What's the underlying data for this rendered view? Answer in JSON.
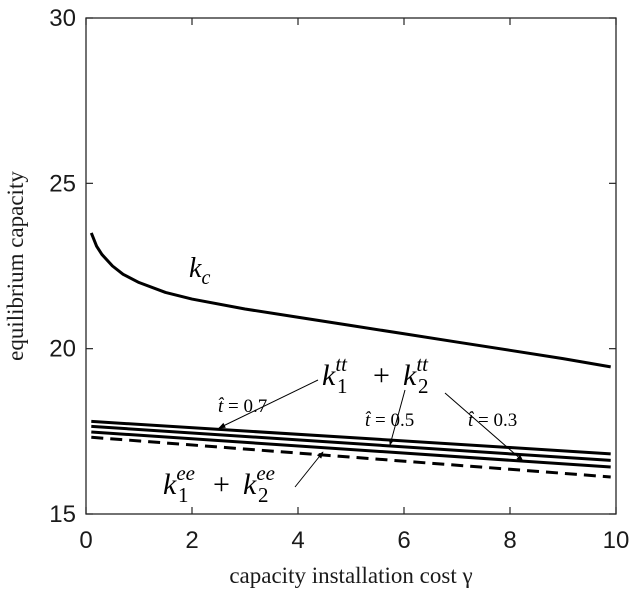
{
  "chart_data": {
    "type": "line",
    "xlabel": "capacity installation cost γ",
    "ylabel": "equilibrium capacity",
    "xlim": [
      0,
      10
    ],
    "ylim": [
      15,
      30
    ],
    "xticks": [
      0,
      2,
      4,
      6,
      8,
      10
    ],
    "yticks": [
      15,
      20,
      25,
      30
    ],
    "grid": false,
    "series": [
      {
        "name": "k_c",
        "style": "solid",
        "x": [
          0.1,
          0.2,
          0.3,
          0.5,
          0.7,
          1,
          1.5,
          2,
          3,
          4,
          5,
          6,
          7,
          8,
          9,
          9.9
        ],
        "y": [
          23.5,
          23.1,
          22.85,
          22.5,
          22.25,
          22.0,
          21.7,
          21.5,
          21.2,
          20.95,
          20.7,
          20.45,
          20.2,
          19.95,
          19.7,
          19.45
        ]
      },
      {
        "name": "t̂ = 0.7",
        "style": "solid",
        "x": [
          0.1,
          9.9
        ],
        "y": [
          17.8,
          16.82
        ]
      },
      {
        "name": "t̂ = 0.5",
        "style": "solid",
        "x": [
          0.1,
          9.9
        ],
        "y": [
          17.65,
          16.62
        ]
      },
      {
        "name": "t̂ = 0.3",
        "style": "solid",
        "x": [
          0.1,
          9.9
        ],
        "y": [
          17.48,
          16.42
        ]
      },
      {
        "name": "k_1^ee + k_2^ee",
        "style": "dashed",
        "x": [
          0.1,
          9.9
        ],
        "y": [
          17.32,
          16.12
        ]
      }
    ],
    "annotations": {
      "kc": {
        "main": "k",
        "sub": "c"
      },
      "ktt": {
        "k1": "k",
        "sub1": "1",
        "sup1": "tt",
        "plus": "+",
        "k2": "k",
        "sub2": "2",
        "sup2": "tt"
      },
      "kee": {
        "k1": "k",
        "sub1": "1",
        "sup1": "ee",
        "plus": "+",
        "k2": "k",
        "sub2": "2",
        "sup2": "ee"
      },
      "t07": {
        "t": "t̂",
        "rest": " = 0.7"
      },
      "t05": {
        "t": "t̂",
        "rest": " = 0.5"
      },
      "t03": {
        "t": "t̂",
        "rest": " = 0.3"
      }
    }
  }
}
